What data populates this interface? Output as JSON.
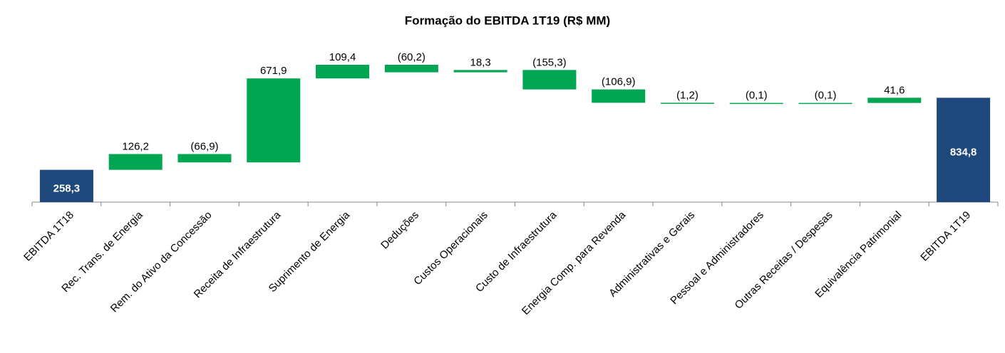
{
  "chart_data": {
    "type": "waterfall",
    "title": "Formação do EBITDA 1T19 (R$ MM)",
    "categories": [
      "EBITDA 1T18",
      "Rec. Trans. de Energia",
      "Rem. do Ativo da Concessão",
      "Receita de Infraestrutura",
      "Suprimento de Energia",
      "Deduções",
      "Custos Operacionais",
      "Custo de Infraestrutura",
      "Energia Comp. para Revenda",
      "Administrativas e Gerais",
      "Pessoal e Administradores",
      "Outras Receitas / Despesas",
      "Equivalência Patrimonial",
      "EBITDA 1T19"
    ],
    "values": [
      258.3,
      126.2,
      -66.9,
      671.9,
      109.4,
      -60.2,
      18.3,
      -155.3,
      -106.9,
      -1.2,
      -0.1,
      -0.1,
      41.6,
      834.8
    ],
    "value_labels": [
      "258,3",
      "126,2",
      "(66,9)",
      "671,9",
      "109,4",
      "(60,2)",
      "18,3",
      "(155,3)",
      "(106,9)",
      "(1,2)",
      "(0,1)",
      "(0,1)",
      "41,6",
      "834,8"
    ],
    "color": "#00a651",
    "total_color": "#1f497d"
  }
}
